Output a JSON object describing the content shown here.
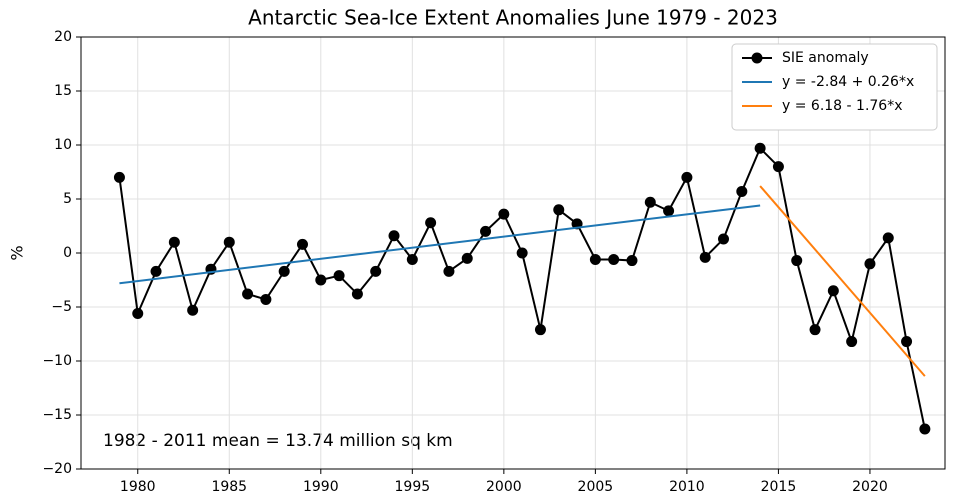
{
  "chart_data": {
    "type": "line",
    "title": "Antarctic Sea-Ice Extent Anomalies June 1979 - 2023",
    "ylabel": "%",
    "annotation": "1982 - 2011 mean = 13.74 million sq km",
    "xlim": [
      1976.9,
      2024.1
    ],
    "xticks": [
      1980,
      1985,
      1990,
      1995,
      2000,
      2005,
      2010,
      2015,
      2020
    ],
    "ylim": [
      -20,
      20
    ],
    "yticks": [
      {
        "value": -20,
        "label": "−20"
      },
      {
        "value": -15,
        "label": "−15"
      },
      {
        "value": -10,
        "label": "−10"
      },
      {
        "value": -5,
        "label": "−5"
      },
      0,
      5,
      10,
      15,
      20
    ],
    "grid": true,
    "legend": "upper right",
    "series": [
      {
        "name": "SIE anomaly",
        "color": "#000000",
        "marker": true,
        "x": [
          1979,
          1980,
          1981,
          1982,
          1983,
          1984,
          1985,
          1986,
          1987,
          1988,
          1989,
          1990,
          1991,
          1992,
          1993,
          1994,
          1995,
          1996,
          1997,
          1998,
          1999,
          2000,
          2001,
          2002,
          2003,
          2004,
          2005,
          2006,
          2007,
          2008,
          2009,
          2010,
          2011,
          2012,
          2013,
          2014,
          2015,
          2016,
          2017,
          2018,
          2019,
          2020,
          2021,
          2022,
          2023
        ],
        "values": [
          7.0,
          -5.6,
          -1.7,
          1.0,
          -5.3,
          -1.5,
          1.0,
          -3.8,
          -4.3,
          -1.7,
          0.8,
          -2.5,
          -2.1,
          -3.8,
          -1.7,
          1.6,
          -0.6,
          2.8,
          -1.7,
          -0.5,
          2.0,
          3.6,
          0.0,
          -7.1,
          4.0,
          2.7,
          -0.6,
          -0.6,
          -0.7,
          4.7,
          3.9,
          7.0,
          -0.4,
          1.3,
          5.7,
          9.7,
          8.0,
          -0.7,
          -7.1,
          -3.5,
          -8.2,
          -1.0,
          1.4,
          -8.2,
          -16.3
        ]
      },
      {
        "name": "y = -2.84 + 0.26*x",
        "color": "#1f77b4",
        "marker": false,
        "x": [
          1979,
          2014
        ],
        "values": [
          -2.8,
          4.4
        ]
      },
      {
        "name": "y = 6.18 - 1.76*x",
        "color": "#ff7f0e",
        "marker": false,
        "x": [
          2014,
          2023
        ],
        "values": [
          6.2,
          -11.4
        ]
      }
    ]
  }
}
